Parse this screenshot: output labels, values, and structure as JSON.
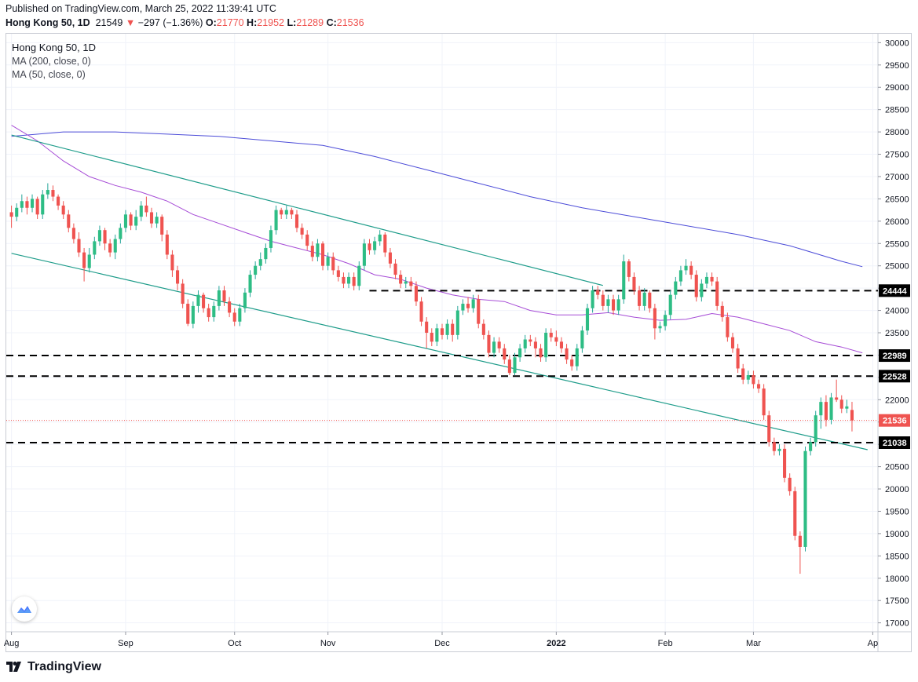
{
  "header": {
    "published": "Published on TradingView.com, March 25, 2022 11:39:41 UTC",
    "symbol_line": "Hong Kong 50, 1D",
    "last": "21549",
    "change_arrow": "▼",
    "change": "−297 (−1.36%)",
    "open_label": "O:",
    "open": "21770",
    "high_label": "H:",
    "high": "21952",
    "low_label": "L:",
    "low": "21289",
    "close_label": "C:",
    "close": "21536"
  },
  "legend": {
    "title": "Hong Kong 50, 1D",
    "ma200": "MA (200, close, 0)",
    "ma50": "MA (50, close, 0)"
  },
  "footer": {
    "brand": "TradingView"
  },
  "colors": {
    "up": "#26a69a",
    "up_fill": "#2ebd85",
    "down": "#ef5350",
    "ma200": "#4c4cd8",
    "ma50": "#a64bd6",
    "trend": "#1e9c8a",
    "level": "#000000"
  },
  "chart_data": {
    "type": "candlestick",
    "y_ticks": [
      17000,
      17500,
      18000,
      18500,
      19000,
      19500,
      20000,
      20500,
      21000,
      21500,
      22000,
      22500,
      23000,
      23500,
      24000,
      24500,
      25000,
      25500,
      26000,
      26500,
      27000,
      27500,
      28000,
      28500,
      29000,
      29500,
      30000
    ],
    "ylim": [
      16800,
      30200
    ],
    "x_ticks": [
      {
        "label": "Aug",
        "day": 0
      },
      {
        "label": "Sep",
        "day": 22
      },
      {
        "label": "Oct",
        "day": 43
      },
      {
        "label": "Nov",
        "day": 61
      },
      {
        "label": "Dec",
        "day": 83
      },
      {
        "label": "2022",
        "day": 105
      },
      {
        "label": "Feb",
        "day": 126
      },
      {
        "label": "Mar",
        "day": 143
      },
      {
        "label": "Ap",
        "day": 166
      }
    ],
    "xlim": [
      -1,
      167
    ],
    "price_labels": [
      {
        "value": 24444,
        "text": "24444",
        "kind": "level"
      },
      {
        "value": 22989,
        "text": "22989",
        "kind": "level"
      },
      {
        "value": 22528,
        "text": "22528",
        "kind": "level"
      },
      {
        "value": 21536,
        "text": "21536",
        "kind": "last"
      },
      {
        "value": 21038,
        "text": "21038",
        "kind": "level"
      }
    ],
    "levels": [
      {
        "value": 24444,
        "from_day": 69,
        "to_day": 167
      },
      {
        "value": 22989,
        "from_day": -1,
        "to_day": 167
      },
      {
        "value": 22528,
        "from_day": -1,
        "to_day": 167
      },
      {
        "value": 21038,
        "from_day": -1,
        "to_day": 167
      }
    ],
    "trendlines": [
      {
        "from": [
          0,
          27930
        ],
        "to": [
          114,
          24560
        ]
      },
      {
        "from": [
          0,
          25280
        ],
        "to": [
          165,
          20880
        ]
      }
    ],
    "ma200": [
      [
        0,
        27900
      ],
      [
        10,
        28000
      ],
      [
        20,
        28000
      ],
      [
        30,
        27950
      ],
      [
        40,
        27900
      ],
      [
        50,
        27800
      ],
      [
        60,
        27700
      ],
      [
        70,
        27450
      ],
      [
        80,
        27150
      ],
      [
        90,
        26850
      ],
      [
        100,
        26550
      ],
      [
        110,
        26300
      ],
      [
        120,
        26100
      ],
      [
        130,
        25900
      ],
      [
        140,
        25700
      ],
      [
        150,
        25450
      ],
      [
        160,
        25100
      ],
      [
        164,
        24980
      ]
    ],
    "ma50": [
      [
        0,
        28150
      ],
      [
        5,
        27800
      ],
      [
        10,
        27350
      ],
      [
        15,
        27000
      ],
      [
        20,
        26800
      ],
      [
        25,
        26650
      ],
      [
        30,
        26450
      ],
      [
        35,
        26150
      ],
      [
        40,
        25950
      ],
      [
        45,
        25750
      ],
      [
        50,
        25550
      ],
      [
        55,
        25400
      ],
      [
        60,
        25250
      ],
      [
        65,
        25050
      ],
      [
        70,
        24800
      ],
      [
        75,
        24700
      ],
      [
        80,
        24500
      ],
      [
        85,
        24350
      ],
      [
        90,
        24250
      ],
      [
        95,
        24200
      ],
      [
        100,
        24000
      ],
      [
        105,
        23900
      ],
      [
        110,
        23900
      ],
      [
        115,
        23950
      ],
      [
        120,
        23850
      ],
      [
        125,
        23780
      ],
      [
        130,
        23800
      ],
      [
        135,
        23930
      ],
      [
        140,
        23850
      ],
      [
        145,
        23700
      ],
      [
        150,
        23550
      ],
      [
        155,
        23300
      ],
      [
        160,
        23180
      ],
      [
        164,
        23050
      ]
    ],
    "candles": [
      [
        0,
        26200,
        26100,
        26350,
        25850
      ],
      [
        1,
        26100,
        26300,
        26400,
        26000
      ],
      [
        2,
        26300,
        26450,
        26600,
        26200
      ],
      [
        3,
        26450,
        26300,
        26550,
        26150
      ],
      [
        4,
        26300,
        26500,
        26600,
        26200
      ],
      [
        5,
        26500,
        26150,
        26550,
        26050
      ],
      [
        6,
        26150,
        26600,
        26700,
        26050
      ],
      [
        7,
        26600,
        26700,
        26850,
        26500
      ],
      [
        8,
        26700,
        26550,
        26800,
        26450
      ],
      [
        9,
        26550,
        26350,
        26600,
        26250
      ],
      [
        10,
        26350,
        26150,
        26450,
        26050
      ],
      [
        11,
        26150,
        25850,
        26250,
        25750
      ],
      [
        12,
        25850,
        25600,
        25950,
        25500
      ],
      [
        13,
        25600,
        25300,
        25750,
        25200
      ],
      [
        14,
        25300,
        24950,
        25400,
        24650
      ],
      [
        15,
        24950,
        25250,
        25400,
        24850
      ],
      [
        16,
        25250,
        25550,
        25650,
        25150
      ],
      [
        17,
        25550,
        25800,
        25900,
        25450
      ],
      [
        18,
        25800,
        25500,
        25850,
        25350
      ],
      [
        19,
        25500,
        25300,
        25600,
        25200
      ],
      [
        20,
        25300,
        25600,
        25700,
        25150
      ],
      [
        21,
        25600,
        25850,
        25950,
        25500
      ],
      [
        22,
        25850,
        26150,
        26250,
        25750
      ],
      [
        23,
        26150,
        25900,
        26200,
        25800
      ],
      [
        24,
        25900,
        26100,
        26250,
        25800
      ],
      [
        25,
        26100,
        26350,
        26450,
        26000
      ],
      [
        26,
        26350,
        26200,
        26550,
        26100
      ],
      [
        27,
        26200,
        25950,
        26300,
        25850
      ],
      [
        28,
        25950,
        26100,
        26200,
        25850
      ],
      [
        29,
        26100,
        25700,
        26150,
        25550
      ],
      [
        30,
        25700,
        25250,
        25800,
        25150
      ],
      [
        31,
        25250,
        24900,
        25350,
        24750
      ],
      [
        32,
        24900,
        24600,
        25000,
        24450
      ],
      [
        33,
        24600,
        24150,
        24700,
        24050
      ],
      [
        34,
        24150,
        23700,
        24250,
        23650
      ],
      [
        35,
        23700,
        24100,
        24200,
        23600
      ],
      [
        36,
        24100,
        24350,
        24450,
        23950
      ],
      [
        37,
        24350,
        24050,
        24400,
        23950
      ],
      [
        38,
        24050,
        23850,
        24150,
        23750
      ],
      [
        39,
        23850,
        24100,
        24200,
        23750
      ],
      [
        40,
        24100,
        24450,
        24550,
        24000
      ],
      [
        41,
        24450,
        24200,
        24550,
        24100
      ],
      [
        42,
        24200,
        23950,
        24300,
        23850
      ],
      [
        43,
        23950,
        23750,
        24050,
        23650
      ],
      [
        44,
        23750,
        24050,
        24150,
        23650
      ],
      [
        45,
        24050,
        24400,
        24500,
        23950
      ],
      [
        46,
        24400,
        24800,
        24900,
        24300
      ],
      [
        47,
        24800,
        25000,
        25100,
        24700
      ],
      [
        48,
        25000,
        25150,
        25300,
        24900
      ],
      [
        49,
        25150,
        25400,
        25500,
        25050
      ],
      [
        50,
        25400,
        25800,
        25900,
        25300
      ],
      [
        51,
        25800,
        26250,
        26350,
        25700
      ],
      [
        52,
        26250,
        26150,
        26300,
        26050
      ],
      [
        53,
        26150,
        26250,
        26350,
        26050
      ],
      [
        54,
        26250,
        26150,
        26300,
        26050
      ],
      [
        55,
        26150,
        25850,
        26250,
        25750
      ],
      [
        56,
        25850,
        25700,
        25950,
        25600
      ],
      [
        57,
        25700,
        25450,
        25800,
        25350
      ],
      [
        58,
        25450,
        25200,
        25550,
        25100
      ],
      [
        59,
        25200,
        25500,
        25600,
        25100
      ],
      [
        60,
        25500,
        25000,
        25550,
        24900
      ],
      [
        61,
        25000,
        25200,
        25300,
        24900
      ],
      [
        62,
        25200,
        24900,
        25300,
        24800
      ],
      [
        63,
        24900,
        24750,
        25000,
        24650
      ],
      [
        64,
        24750,
        24600,
        24850,
        24500
      ],
      [
        65,
        24600,
        24750,
        24850,
        24500
      ],
      [
        66,
        24750,
        24550,
        24850,
        24450
      ],
      [
        67,
        24550,
        25000,
        25100,
        24450
      ],
      [
        68,
        25000,
        25500,
        25600,
        24900
      ],
      [
        69,
        25500,
        25350,
        25600,
        25250
      ],
      [
        70,
        25350,
        25550,
        25650,
        25250
      ],
      [
        71,
        25550,
        25700,
        25800,
        25450
      ],
      [
        72,
        25700,
        25300,
        25750,
        25200
      ],
      [
        73,
        25300,
        25050,
        25400,
        24950
      ],
      [
        74,
        25050,
        24800,
        25150,
        24700
      ],
      [
        75,
        24800,
        24600,
        24900,
        24500
      ],
      [
        76,
        24600,
        24650,
        24750,
        24500
      ],
      [
        77,
        24650,
        24550,
        24750,
        24450
      ],
      [
        78,
        24550,
        24200,
        24650,
        24100
      ],
      [
        79,
        24200,
        23750,
        24300,
        23650
      ],
      [
        80,
        23750,
        23500,
        23850,
        23150
      ],
      [
        81,
        23500,
        23300,
        23600,
        23200
      ],
      [
        82,
        23300,
        23600,
        23700,
        23200
      ],
      [
        83,
        23600,
        23450,
        23700,
        23350
      ],
      [
        84,
        23450,
        23700,
        23800,
        23350
      ],
      [
        85,
        23700,
        23450,
        23800,
        23300
      ],
      [
        86,
        23450,
        24000,
        24100,
        23350
      ],
      [
        87,
        24000,
        24150,
        24250,
        23900
      ],
      [
        88,
        24150,
        24050,
        24300,
        23950
      ],
      [
        89,
        24050,
        24250,
        24350,
        23950
      ],
      [
        90,
        24250,
        23700,
        24350,
        23600
      ],
      [
        91,
        23700,
        23450,
        23800,
        23350
      ],
      [
        92,
        23450,
        23050,
        23550,
        22950
      ],
      [
        93,
        23050,
        23300,
        23400,
        22950
      ],
      [
        94,
        23300,
        23150,
        23400,
        23050
      ],
      [
        95,
        23150,
        22900,
        23250,
        22800
      ],
      [
        96,
        22900,
        22600,
        23000,
        22550
      ],
      [
        97,
        22600,
        22950,
        23050,
        22550
      ],
      [
        98,
        22950,
        23150,
        23250,
        22850
      ],
      [
        99,
        23150,
        23350,
        23450,
        23050
      ],
      [
        100,
        23350,
        23300,
        23450,
        23200
      ],
      [
        101,
        23300,
        23150,
        23400,
        22950
      ],
      [
        102,
        23150,
        22950,
        23250,
        22850
      ],
      [
        103,
        22950,
        23500,
        23600,
        22850
      ],
      [
        104,
        23500,
        23400,
        23600,
        23300
      ],
      [
        105,
        23400,
        23300,
        23550,
        23200
      ],
      [
        106,
        23300,
        23150,
        23400,
        23050
      ],
      [
        107,
        23150,
        22900,
        23250,
        22800
      ],
      [
        108,
        22900,
        22750,
        23000,
        22650
      ],
      [
        109,
        22750,
        23150,
        23250,
        22650
      ],
      [
        110,
        23150,
        23550,
        23650,
        23050
      ],
      [
        111,
        23550,
        24050,
        24150,
        23450
      ],
      [
        112,
        24050,
        24450,
        24550,
        23950
      ],
      [
        113,
        24450,
        24350,
        24550,
        24250
      ],
      [
        114,
        24350,
        24100,
        24450,
        24000
      ],
      [
        115,
        24100,
        24250,
        24350,
        23950
      ],
      [
        116,
        24250,
        24000,
        24350,
        23900
      ],
      [
        117,
        24000,
        24250,
        24350,
        23900
      ],
      [
        118,
        24250,
        25100,
        25250,
        24150
      ],
      [
        119,
        25100,
        24750,
        25150,
        24650
      ],
      [
        120,
        24750,
        24450,
        24850,
        24350
      ],
      [
        121,
        24450,
        24100,
        24550,
        24000
      ],
      [
        122,
        24100,
        24400,
        24500,
        24000
      ],
      [
        123,
        24400,
        24050,
        24450,
        23950
      ],
      [
        124,
        24050,
        23600,
        24150,
        23350
      ],
      [
        125,
        23600,
        23650,
        23750,
        23500
      ],
      [
        126,
        23650,
        23900,
        24000,
        23550
      ],
      [
        127,
        23900,
        24350,
        24450,
        23800
      ],
      [
        128,
        24350,
        24650,
        24750,
        24250
      ],
      [
        129,
        24650,
        24900,
        25000,
        24550
      ],
      [
        130,
        24900,
        25000,
        25150,
        24800
      ],
      [
        131,
        25000,
        24800,
        25100,
        24700
      ],
      [
        132,
        24800,
        24300,
        24900,
        24200
      ],
      [
        133,
        24300,
        24600,
        24700,
        24200
      ],
      [
        134,
        24600,
        24750,
        24850,
        24500
      ],
      [
        135,
        24750,
        24650,
        24850,
        24550
      ],
      [
        136,
        24650,
        24100,
        24750,
        24000
      ],
      [
        137,
        24100,
        23850,
        24200,
        23750
      ],
      [
        138,
        23850,
        23400,
        23950,
        23300
      ],
      [
        139,
        23400,
        23150,
        23500,
        23050
      ],
      [
        140,
        23150,
        22700,
        23250,
        22600
      ],
      [
        141,
        22700,
        22450,
        22800,
        22350
      ],
      [
        142,
        22450,
        22550,
        22650,
        22350
      ],
      [
        143,
        22550,
        22350,
        22650,
        22250
      ],
      [
        144,
        22350,
        22250,
        22450,
        22150
      ],
      [
        145,
        22250,
        21650,
        22350,
        21550
      ],
      [
        146,
        21650,
        21050,
        21750,
        20950
      ],
      [
        147,
        21050,
        20850,
        21150,
        20750
      ],
      [
        148,
        20850,
        20900,
        21000,
        20750
      ],
      [
        149,
        20900,
        20250,
        21000,
        20150
      ],
      [
        150,
        20250,
        19950,
        20350,
        19850
      ],
      [
        151,
        19950,
        18950,
        20050,
        18850
      ],
      [
        152,
        18950,
        18700,
        19050,
        18100
      ],
      [
        153,
        18700,
        20850,
        20950,
        18600
      ],
      [
        154,
        20850,
        21050,
        21150,
        20750
      ],
      [
        155,
        21050,
        21650,
        21750,
        20950
      ],
      [
        156,
        21650,
        21950,
        22050,
        21350
      ],
      [
        157,
        21950,
        21550,
        22100,
        21400
      ],
      [
        158,
        21550,
        22050,
        22150,
        21450
      ],
      [
        159,
        22050,
        22000,
        22450,
        21950
      ],
      [
        160,
        22000,
        21800,
        22100,
        21700
      ],
      [
        161,
        21800,
        21850,
        22000,
        21700
      ],
      [
        162,
        21770,
        21536,
        21952,
        21289
      ]
    ]
  }
}
